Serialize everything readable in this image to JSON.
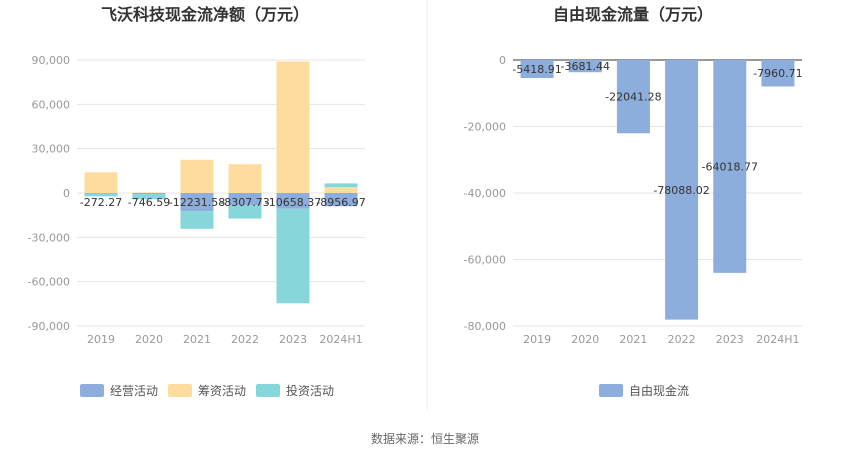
{
  "source_text": "数据来源：恒生聚源",
  "chart_data": [
    {
      "type": "bar",
      "stacked": true,
      "title": "飞沃科技现金流净额（万元）",
      "categories": [
        "2019",
        "2020",
        "2021",
        "2022",
        "2023",
        "2024H1"
      ],
      "ylim": [
        -90000,
        90000
      ],
      "yticks": [
        -90000,
        -60000,
        -30000,
        0,
        30000,
        60000,
        90000
      ],
      "ytick_labels": [
        "-90,000",
        "-60,000",
        "-30,000",
        "0",
        "30,000",
        "60,000",
        "90,000"
      ],
      "grid": true,
      "legend_position": "bottom",
      "series": [
        {
          "name": "经营活动",
          "color": "#8DAEDD",
          "values": [
            -272.27,
            -746.59,
            -12231.58,
            -8307.73,
            -10658.37,
            -8956.97
          ]
        },
        {
          "name": "筹资活动",
          "color": "#FEDB9E",
          "values": [
            14000,
            400,
            22500,
            19500,
            89000,
            4000
          ]
        },
        {
          "name": "投资活动",
          "color": "#87D7DA",
          "values": [
            -2000,
            -3500,
            -12000,
            -9000,
            -64000,
            2500
          ]
        }
      ],
      "data_labels": [
        "-272.27",
        "-746.59",
        "-12231.58",
        "-8307.73",
        "-10658.37",
        "-8956.97"
      ]
    },
    {
      "type": "bar",
      "title": "自由现金流量（万元）",
      "categories": [
        "2019",
        "2020",
        "2021",
        "2022",
        "2023",
        "2024H1"
      ],
      "ylim": [
        -80000,
        0
      ],
      "yticks": [
        -80000,
        -60000,
        -40000,
        -20000,
        0
      ],
      "ytick_labels": [
        "-80,000",
        "-60,000",
        "-40,000",
        "-20,000",
        "0"
      ],
      "grid": true,
      "legend_position": "bottom",
      "series": [
        {
          "name": "自由现金流",
          "color": "#8DAEDD",
          "values": [
            -5418.91,
            -3681.44,
            -22041.28,
            -78088.02,
            -64018.77,
            -7960.71
          ]
        }
      ],
      "data_labels": [
        "-5418.91",
        "-3681.44",
        "-22041.28",
        "-78088.02",
        "-64018.77",
        "-7960.71"
      ]
    }
  ]
}
